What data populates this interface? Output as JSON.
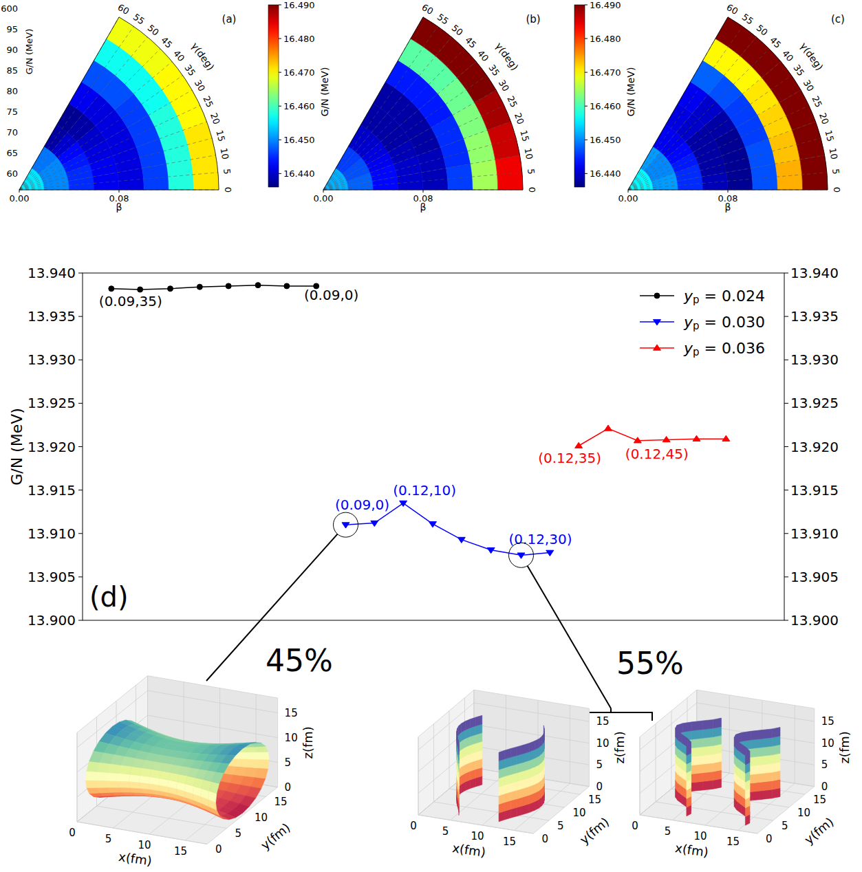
{
  "chart_data": [
    {
      "type": "heatmap",
      "label": "(a)",
      "xlabel": "β",
      "angle_label": "γ(deg)",
      "xlim": [
        0,
        0.16
      ],
      "xticks": [
        {
          "value": 0,
          "label": "0.00"
        },
        {
          "value": 0.08,
          "label": "0.08"
        }
      ],
      "angle_lim": [
        0,
        60
      ],
      "angle_ticks": [
        0,
        5,
        10,
        15,
        20,
        25,
        30,
        35,
        40,
        45,
        50,
        55,
        60
      ],
      "grid": true,
      "beta_bins": [
        0,
        0.02,
        0.04,
        0.06,
        0.08,
        0.1,
        0.12,
        0.14,
        0.16
      ],
      "gamma_bins": [
        0,
        10,
        20,
        30,
        40,
        50,
        60
      ],
      "cells": [
        [
          16.455,
          16.455,
          16.455,
          16.455,
          16.455,
          16.455
        ],
        [
          16.45,
          16.45,
          16.45,
          16.45,
          16.449,
          16.449
        ],
        [
          16.445,
          16.445,
          16.444,
          16.443,
          16.44,
          16.438
        ],
        [
          16.442,
          16.442,
          16.441,
          16.44,
          16.438,
          16.437
        ],
        [
          16.441,
          16.441,
          16.441,
          16.441,
          16.441,
          16.442
        ],
        [
          16.446,
          16.446,
          16.446,
          16.446,
          16.447,
          16.447
        ],
        [
          16.458,
          16.458,
          16.458,
          16.457,
          16.457,
          16.457
        ],
        [
          16.471,
          16.471,
          16.47,
          16.47,
          16.469,
          16.469
        ]
      ],
      "colorbar": {
        "label": "G/N (MeV)",
        "lim": [
          16.436,
          16.49
        ],
        "ticks": [
          {
            "value": 16.44,
            "label": "16.440"
          },
          {
            "value": 16.45,
            "label": "16.450"
          },
          {
            "value": 16.46,
            "label": "16.460"
          },
          {
            "value": 16.47,
            "label": "16.470"
          },
          {
            "value": 16.48,
            "label": "16.480"
          },
          {
            "value": 16.49,
            "label": "16.490"
          }
        ]
      }
    },
    {
      "type": "heatmap",
      "label": "(b)",
      "xlabel": "β",
      "angle_label": "γ(deg)",
      "xlim": [
        0,
        0.16
      ],
      "xticks": [
        {
          "value": 0,
          "label": "0.00"
        },
        {
          "value": 0.08,
          "label": "0.08"
        }
      ],
      "angle_lim": [
        0,
        60
      ],
      "angle_ticks": [
        0,
        5,
        10,
        15,
        20,
        25,
        30,
        35,
        40,
        45,
        50,
        55,
        60
      ],
      "grid": true,
      "beta_bins": [
        0,
        0.02,
        0.04,
        0.06,
        0.08,
        0.1,
        0.12,
        0.14,
        0.16
      ],
      "gamma_bins": [
        0,
        10,
        20,
        30,
        40,
        50,
        60
      ],
      "cells": [
        [
          16.452,
          16.452,
          16.452,
          16.452,
          16.452,
          16.452
        ],
        [
          16.448,
          16.448,
          16.447,
          16.447,
          16.446,
          16.446
        ],
        [
          16.443,
          16.443,
          16.442,
          16.441,
          16.44,
          16.44
        ],
        [
          16.44,
          16.44,
          16.439,
          16.438,
          16.438,
          16.438
        ],
        [
          16.439,
          16.439,
          16.438,
          16.438,
          16.438,
          16.438
        ],
        [
          16.446,
          16.445,
          16.445,
          16.444,
          16.444,
          16.444
        ],
        [
          16.465,
          16.464,
          16.463,
          16.462,
          16.461,
          16.461
        ],
        [
          16.484,
          16.486,
          16.488,
          16.49,
          16.49,
          16.49
        ]
      ],
      "colorbar": {
        "label": "G/N (MeV)",
        "lim": [
          16.436,
          16.49
        ],
        "ticks": [
          {
            "value": 16.44,
            "label": "16.440"
          },
          {
            "value": 16.45,
            "label": "16.450"
          },
          {
            "value": 16.46,
            "label": "16.460"
          },
          {
            "value": 16.47,
            "label": "16.470"
          },
          {
            "value": 16.48,
            "label": "16.480"
          },
          {
            "value": 16.49,
            "label": "16.490"
          }
        ]
      }
    },
    {
      "type": "heatmap",
      "label": "(c)",
      "xlabel": "β",
      "angle_label": "γ(deg)",
      "xlim": [
        0,
        0.16
      ],
      "xticks": [
        {
          "value": 0,
          "label": "0.00"
        },
        {
          "value": 0.08,
          "label": "0.08"
        }
      ],
      "angle_lim": [
        0,
        60
      ],
      "angle_ticks": [
        0,
        5,
        10,
        15,
        20,
        25,
        30,
        35,
        40,
        45,
        50,
        55,
        60
      ],
      "grid": true,
      "beta_bins": [
        0,
        0.02,
        0.04,
        0.06,
        0.08,
        0.1,
        0.12,
        0.14,
        0.16
      ],
      "gamma_bins": [
        0,
        10,
        20,
        30,
        40,
        50,
        60
      ],
      "cells": [
        [
          16.456,
          16.456,
          16.456,
          16.456,
          16.456,
          16.456
        ],
        [
          16.451,
          16.451,
          16.45,
          16.45,
          16.45,
          16.451
        ],
        [
          16.445,
          16.445,
          16.444,
          16.443,
          16.442,
          16.442
        ],
        [
          16.439,
          16.438,
          16.438,
          16.438,
          16.44,
          16.441
        ],
        [
          16.437,
          16.437,
          16.437,
          16.438,
          16.44,
          16.442
        ],
        [
          16.447,
          16.447,
          16.446,
          16.446,
          16.447,
          16.448
        ],
        [
          16.474,
          16.473,
          16.472,
          16.471,
          16.47,
          16.47
        ],
        [
          16.49,
          16.49,
          16.49,
          16.49,
          16.49,
          16.49
        ]
      ],
      "color_range": [
        16.436,
        16.49
      ]
    },
    {
      "type": "line",
      "label": "(d)",
      "ylabel": "G/N (MeV)",
      "xlim": [
        0,
        100
      ],
      "ylim": [
        13.9,
        13.94
      ],
      "yticks": [
        {
          "value": 13.9,
          "label": "13.900"
        },
        {
          "value": 13.905,
          "label": "13.905"
        },
        {
          "value": 13.91,
          "label": "13.910"
        },
        {
          "value": 13.915,
          "label": "13.915"
        },
        {
          "value": 13.92,
          "label": "13.920"
        },
        {
          "value": 13.925,
          "label": "13.925"
        },
        {
          "value": 13.93,
          "label": "13.930"
        },
        {
          "value": 13.935,
          "label": "13.935"
        },
        {
          "value": 13.94,
          "label": "13.940"
        }
      ],
      "y2lim": [
        13.9,
        13.94
      ],
      "y2ticks": [
        {
          "value": 13.9,
          "label": "13.900"
        },
        {
          "value": 13.905,
          "label": "13.905"
        },
        {
          "value": 13.91,
          "label": "13.910"
        },
        {
          "value": 13.915,
          "label": "13.915"
        },
        {
          "value": 13.92,
          "label": "13.920"
        },
        {
          "value": 13.925,
          "label": "13.925"
        },
        {
          "value": 13.93,
          "label": "13.930"
        },
        {
          "value": 13.935,
          "label": "13.935"
        },
        {
          "value": 13.94,
          "label": "13.940"
        }
      ],
      "tick_labels": "y",
      "grid": false,
      "legend": "upper right",
      "series": [
        {
          "name": "yp = 0.024",
          "color": "#000000",
          "marker": "circle",
          "line_style": "solid",
          "x": [
            4.1,
            8.2,
            12.5,
            16.7,
            20.8,
            25.0,
            29.1,
            33.3
          ],
          "values": [
            13.9382,
            13.9381,
            13.9382,
            13.9384,
            13.9385,
            13.9386,
            13.9385,
            13.9385
          ],
          "annotations": [
            {
              "text": "(0.09,35)",
              "point": 0
            },
            {
              "text": "(0.09,0)",
              "point": 7
            }
          ]
        },
        {
          "name": "yp = 0.030",
          "color": "#0000ff",
          "marker": "triangle-down",
          "line_style": "solid",
          "x": [
            37.5,
            41.6,
            45.7,
            49.9,
            54.0,
            58.2,
            62.5,
            66.6
          ],
          "values": [
            13.911,
            13.9112,
            13.9135,
            13.9111,
            13.9093,
            13.9081,
            13.9075,
            13.9078
          ],
          "annotations": [
            {
              "text": "(0.09,0)",
              "point": 0
            },
            {
              "text": "(0.12,10)",
              "point": 2
            },
            {
              "text": "(0.12,30)",
              "point": 6
            }
          ]
        },
        {
          "name": "yp = 0.036",
          "color": "#ff0000",
          "marker": "triangle-up",
          "line_style": "solid",
          "x": [
            70.7,
            74.9,
            79.1,
            83.2,
            87.5,
            91.7
          ],
          "values": [
            13.9201,
            13.9221,
            13.9207,
            13.9208,
            13.9209,
            13.9209
          ],
          "annotations": [
            {
              "text": "(0.12,35)",
              "point": 0
            },
            {
              "text": "(0.12,45)",
              "point": 2
            }
          ]
        }
      ]
    }
  ],
  "fragment": {
    "label": "G/N (MeV)",
    "tick_texts": [
      "600",
      "95",
      "90",
      "85",
      "80",
      "75",
      "70",
      "65",
      "60"
    ]
  },
  "clusters": [
    {
      "label": "45%",
      "series": 1,
      "point": 0
    },
    {
      "label": "55%",
      "series": 1,
      "point": 6
    }
  ],
  "insets": [
    {
      "xlabel": "x(fm)",
      "ylabel": "y(fm)",
      "zlabel": "z(fm)",
      "xlim": [
        0,
        18
      ],
      "ylim": [
        0,
        18
      ],
      "zlim": [
        0,
        18
      ],
      "xticks": [
        0,
        5,
        10,
        15
      ],
      "yticks": [
        0,
        5,
        10,
        15
      ],
      "zticks": [
        0,
        5,
        10,
        15
      ]
    },
    {
      "xlabel": "x(fm)",
      "ylabel": "y(fm)",
      "zlabel": "z(fm)",
      "xlim": [
        0,
        18
      ],
      "ylim": [
        0,
        18
      ],
      "zlim": [
        0,
        18
      ],
      "xticks": [
        0,
        5,
        10,
        15
      ],
      "yticks": [
        0,
        5,
        10,
        15
      ],
      "zticks": [
        0,
        5,
        10,
        15
      ]
    },
    {
      "xlabel": "x(fm)",
      "ylabel": "y(fm)",
      "zlabel": "z(fm)",
      "xlim": [
        0,
        18
      ],
      "ylim": [
        0,
        18
      ],
      "zlim": [
        0,
        18
      ],
      "xticks": [
        0,
        5,
        10,
        15
      ],
      "yticks": [
        0,
        5,
        10,
        15
      ],
      "zticks": [
        0,
        5,
        10,
        15
      ]
    }
  ]
}
